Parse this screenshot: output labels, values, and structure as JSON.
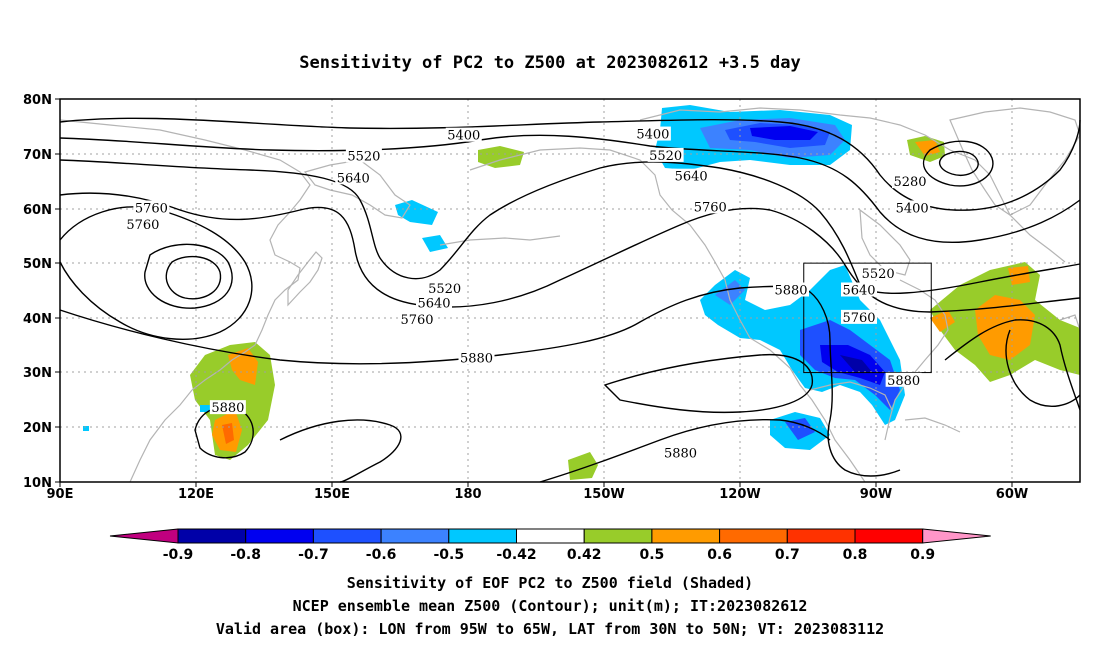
{
  "title": "Sensitivity of PC2 to Z500 at 2023082612 +3.5 day",
  "lat_labels": [
    "80N",
    "70N",
    "60N",
    "50N",
    "40N",
    "30N",
    "20N",
    "10N"
  ],
  "lon_labels": [
    "90E",
    "120E",
    "150E",
    "180",
    "150W",
    "120W",
    "90W",
    "60W"
  ],
  "contour_labels": [
    {
      "text": "5400",
      "lon": -175.0,
      "lat": 73.3
    },
    {
      "text": "5400",
      "lon": -130.5,
      "lat": 73.5
    },
    {
      "text": "5520",
      "lon": 161.5,
      "lat": 69.5
    },
    {
      "text": "5520",
      "lon": -127.5,
      "lat": 69.6
    },
    {
      "text": "5640",
      "lon": 159.0,
      "lat": 65.5
    },
    {
      "text": "5640",
      "lon": -121.5,
      "lat": 65.8
    },
    {
      "text": "5760",
      "lon": 111.5,
      "lat": 60.0
    },
    {
      "text": "5760",
      "lon": 109.5,
      "lat": 57.0
    },
    {
      "text": "5760",
      "lon": -117.0,
      "lat": 60.2
    },
    {
      "text": "5520",
      "lon": -179.5,
      "lat": 45.3
    },
    {
      "text": "5640",
      "lon": 178.0,
      "lat": 42.6
    },
    {
      "text": "5760",
      "lon": 174.0,
      "lat": 39.6
    },
    {
      "text": "5880",
      "lon": -172.0,
      "lat": 32.6
    },
    {
      "text": "5880",
      "lon": -98.0,
      "lat": 45.0
    },
    {
      "text": "5640",
      "lon": -82.0,
      "lat": 45.0
    },
    {
      "text": "5760",
      "lon": -82.0,
      "lat": 40.0
    },
    {
      "text": "5520",
      "lon": -77.5,
      "lat": 48.0
    },
    {
      "text": "5400",
      "lon": -69.5,
      "lat": 60.0
    },
    {
      "text": "5280",
      "lon": -70.0,
      "lat": 64.8
    },
    {
      "text": "5880",
      "lon": -71.5,
      "lat": 28.5
    },
    {
      "text": "5880",
      "lon": 129.5,
      "lat": 23.5
    },
    {
      "text": "5880",
      "lon": -124.0,
      "lat": 15.2
    }
  ],
  "colorbar": {
    "colors": [
      "#c0007f",
      "#0000a8",
      "#0000f0",
      "#1e50ff",
      "#3c82ff",
      "#00c8ff",
      "#ffffff",
      "#98cc2a",
      "#ff9b00",
      "#ff6a00",
      "#ff3200",
      "#ff0000",
      "#ff96c8"
    ],
    "labels": [
      "-0.9",
      "-0.8",
      "-0.7",
      "-0.6",
      "-0.5",
      "-0.42",
      "0.42",
      "0.5",
      "0.6",
      "0.7",
      "0.8",
      "0.9"
    ]
  },
  "footer": {
    "line1": "Sensitivity of EOF PC2 to Z500 field (Shaded)",
    "line2": "NCEP ensemble mean Z500 (Contour); unit(m); IT:2023082612",
    "line3": "Valid area (box): LON from 95W to 65W, LAT from 30N to 50N; VT: 2023083112"
  },
  "valid_box": {
    "lon_min": -95,
    "lon_max": -65,
    "lat_min": 30,
    "lat_max": 50
  },
  "colors": {
    "coast": "#b4b4b4",
    "contour": "#000000",
    "grid": "#a0a0a0"
  }
}
